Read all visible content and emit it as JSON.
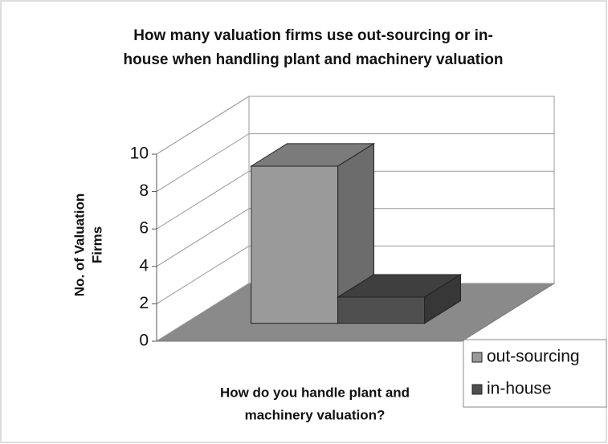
{
  "chart_data": {
    "type": "bar3d",
    "title": [
      "How many valuation firms use out-sourcing or in-",
      "house when handling plant and machinery valuation"
    ],
    "ylabel": [
      "No. of Valuation",
      "Firms"
    ],
    "xlabel": [
      "How do you handle plant and",
      "machinery valuation?"
    ],
    "series": [
      {
        "name": "out-sourcing",
        "color": "#9a9a9a",
        "values": [
          8.4
        ]
      },
      {
        "name": "in-house",
        "color": "#4f4f4f",
        "values": [
          1.4
        ]
      }
    ],
    "ylim": [
      0,
      10
    ],
    "yticks": [
      0,
      2,
      4,
      6,
      8,
      10
    ],
    "grid": true,
    "legend": "right"
  }
}
